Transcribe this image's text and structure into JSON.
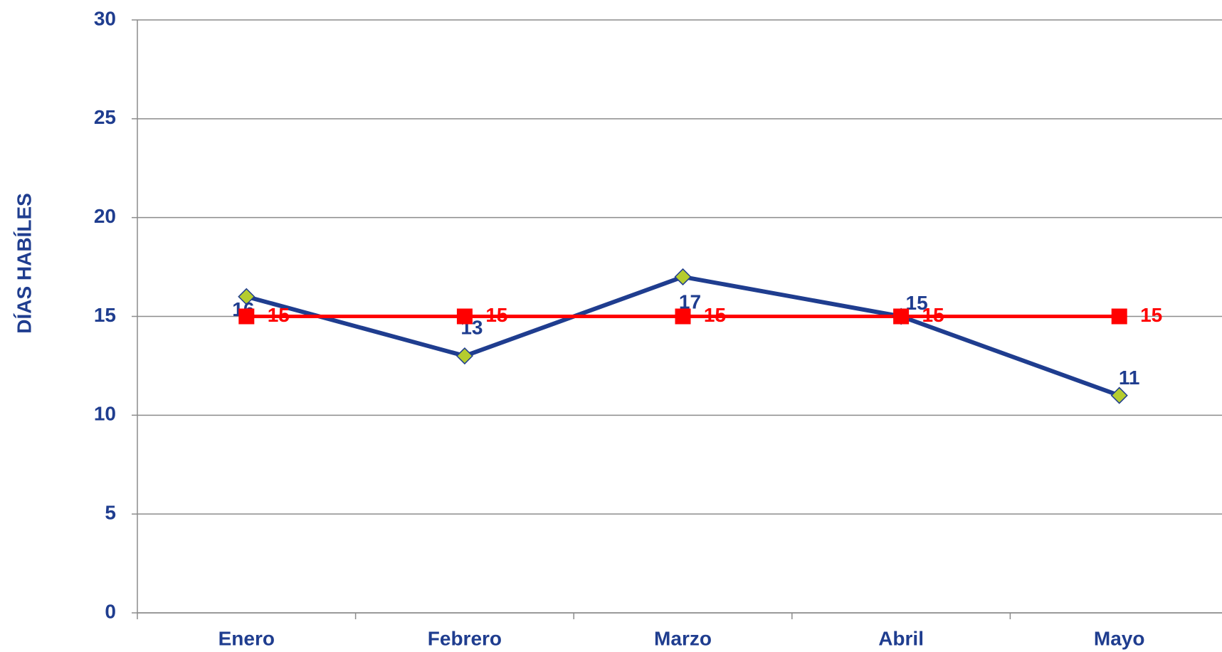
{
  "chart_data": {
    "type": "line",
    "y_label": "DÍAS HABÍLES",
    "categories": [
      "Enero",
      "Febrero",
      "Marzo",
      "Abril",
      "Mayo"
    ],
    "series": [
      {
        "color": "#1f3d8f",
        "marker_color": "#b5cc2e",
        "marker": "diamond",
        "values": [
          16,
          13,
          17,
          15,
          11
        ]
      },
      {
        "color": "#ff0000",
        "marker_color": "#ff0000",
        "marker": "square",
        "values": [
          15,
          15,
          15,
          15,
          15
        ]
      }
    ],
    "ylim": [
      0,
      30
    ],
    "yticks": [
      0,
      5,
      10,
      15,
      20,
      25,
      30
    ],
    "grid": true
  }
}
